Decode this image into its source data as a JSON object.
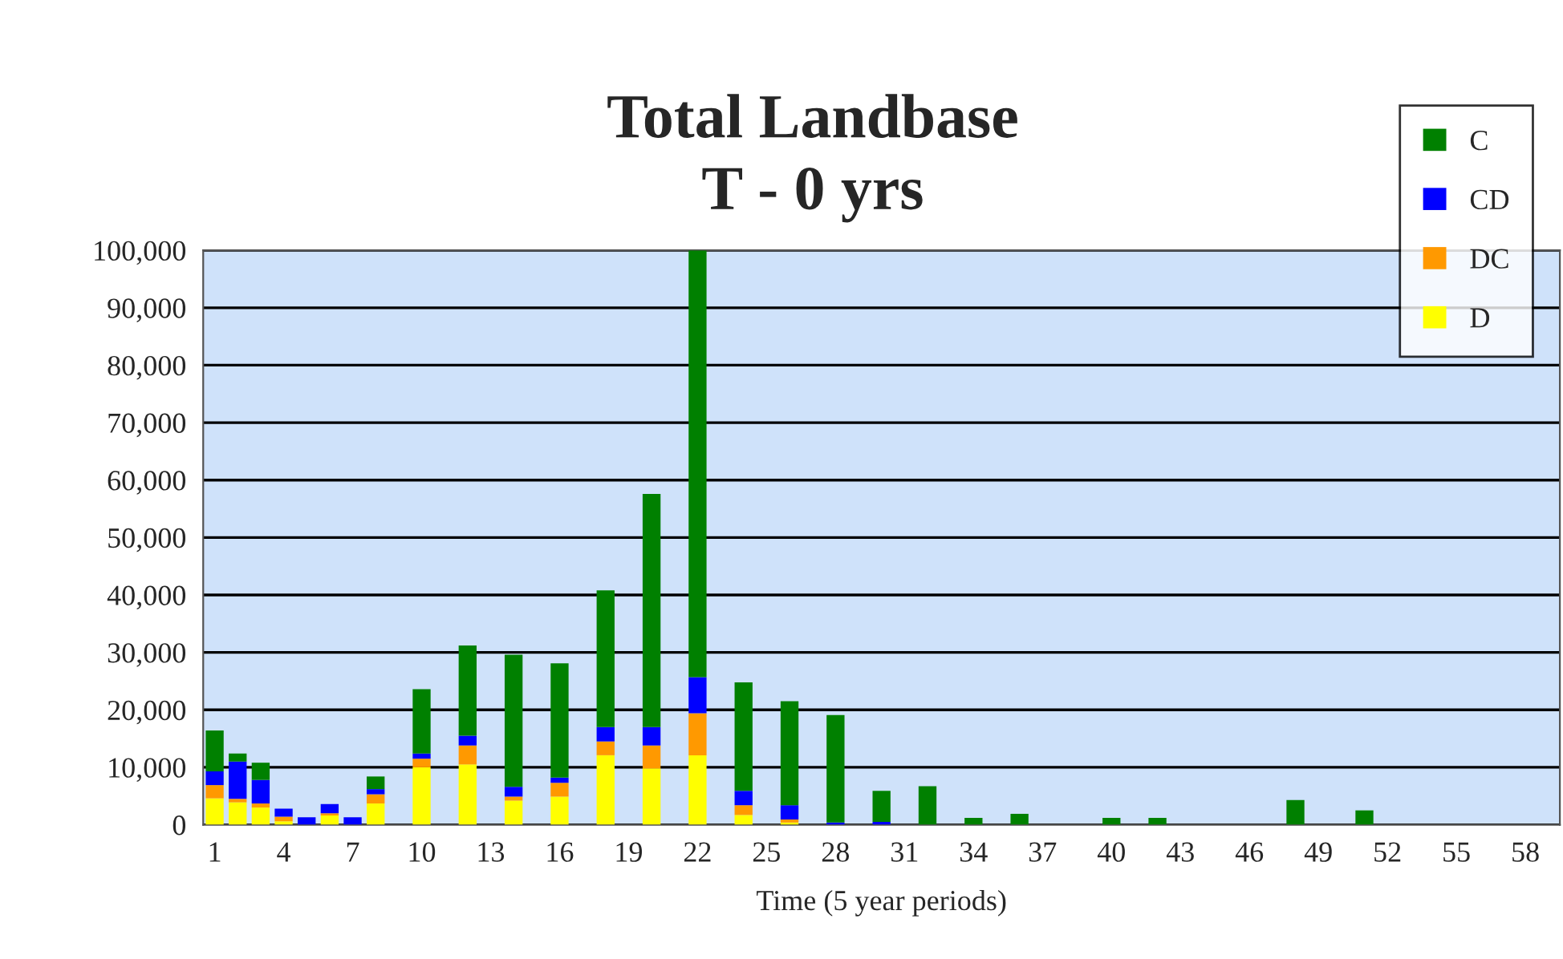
{
  "chart_data": {
    "type": "bar",
    "stacked": true,
    "title": "Total Landbase\nT - 0 yrs",
    "xlabel": "Time (5 year periods)",
    "categories": [
      "1",
      null,
      null,
      "4",
      null,
      null,
      "7",
      null,
      null,
      "10",
      null,
      null,
      "13",
      null,
      null,
      "16",
      null,
      null,
      "19",
      null,
      null,
      "22",
      null,
      null,
      "25",
      null,
      null,
      "28",
      null,
      null,
      "31",
      null,
      null,
      "34",
      null,
      null,
      "37",
      null,
      null,
      "40",
      null,
      null,
      "43",
      null,
      null,
      "46",
      null,
      null,
      "49",
      null,
      null,
      "52",
      null,
      null,
      "55",
      null,
      null,
      "58",
      null
    ],
    "series": [
      {
        "name": "D",
        "color": "#ffff00",
        "values": [
          4600,
          3900,
          3000,
          600,
          null,
          1600,
          null,
          3700,
          null,
          10000,
          null,
          10500,
          null,
          4200,
          null,
          4900,
          null,
          12100,
          null,
          9800,
          null,
          12100,
          null,
          1700,
          null,
          400,
          null,
          null,
          null,
          null,
          null,
          null,
          null,
          null,
          null,
          null,
          null,
          null,
          null,
          null,
          null,
          null,
          null,
          null,
          null,
          null,
          null,
          null,
          null,
          null,
          null,
          null,
          null,
          null,
          null,
          null,
          null,
          null,
          null
        ]
      },
      {
        "name": "DC",
        "color": "#ff9900",
        "values": [
          2300,
          600,
          700,
          800,
          null,
          400,
          null,
          1600,
          null,
          1500,
          null,
          3300,
          null,
          700,
          null,
          2400,
          null,
          2400,
          null,
          4000,
          null,
          7300,
          null,
          1700,
          null,
          500,
          null,
          null,
          null,
          null,
          null,
          null,
          null,
          null,
          null,
          null,
          null,
          null,
          null,
          null,
          null,
          null,
          null,
          null,
          null,
          null,
          null,
          null,
          null,
          null,
          null,
          null,
          null,
          null,
          null,
          null,
          null,
          null,
          null
        ]
      },
      {
        "name": "CD",
        "color": "#0000ff",
        "values": [
          2400,
          6500,
          4100,
          1400,
          1300,
          1600,
          1300,
          900,
          null,
          900,
          null,
          1700,
          null,
          1700,
          null,
          900,
          null,
          2500,
          null,
          3200,
          null,
          6300,
          null,
          2500,
          null,
          2500,
          null,
          400,
          null,
          500,
          null,
          null,
          null,
          null,
          null,
          null,
          null,
          null,
          null,
          null,
          null,
          null,
          null,
          null,
          null,
          null,
          null,
          null,
          null,
          null,
          null,
          null,
          null,
          null,
          null,
          null,
          null,
          null,
          null
        ]
      },
      {
        "name": "C",
        "color": "#008000",
        "values": [
          7100,
          1400,
          3000,
          null,
          null,
          null,
          null,
          2200,
          null,
          11200,
          null,
          15700,
          null,
          23000,
          null,
          19900,
          null,
          23800,
          null,
          40600,
          null,
          74300,
          null,
          18900,
          null,
          18100,
          null,
          18700,
          null,
          5400,
          null,
          6700,
          null,
          1200,
          null,
          1900,
          null,
          null,
          null,
          1200,
          null,
          1200,
          null,
          null,
          null,
          null,
          null,
          4300,
          null,
          null,
          2500,
          null,
          null,
          null,
          null,
          null,
          null,
          null,
          null
        ]
      }
    ],
    "ylim": [
      0,
      100000
    ],
    "yticks": [
      {
        "value": 0,
        "label": "0"
      },
      {
        "value": 10000,
        "label": "10,000"
      },
      {
        "value": 20000,
        "label": "20,000"
      },
      {
        "value": 30000,
        "label": "30,000"
      },
      {
        "value": 40000,
        "label": "40,000"
      },
      {
        "value": 50000,
        "label": "50,000"
      },
      {
        "value": 60000,
        "label": "60,000"
      },
      {
        "value": 70000,
        "label": "70,000"
      },
      {
        "value": 80000,
        "label": "80,000"
      },
      {
        "value": 90000,
        "label": "90,000"
      },
      {
        "value": 100000,
        "label": "100,000"
      }
    ],
    "grid": "y",
    "legend": "top right"
  }
}
